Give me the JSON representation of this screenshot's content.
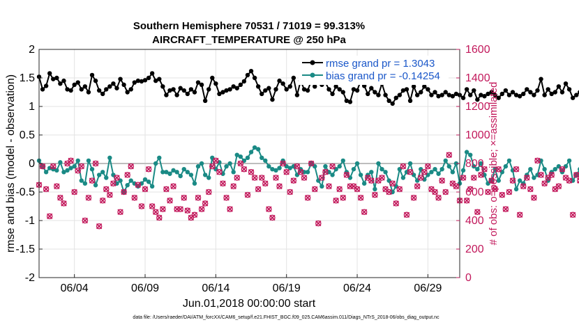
{
  "chart_data": {
    "type": "line",
    "title": "Southern Hemisphere 70531 / 71019 = 99.313%",
    "subtitle": "AIRCRAFT_TEMPERATURE @ 250 hPa",
    "xlabel": "Jun.01,2018 00:00:00 start",
    "ylabel": "rmse and bias (model - observation)",
    "ylabel_right": "# of obs: o=possible; ×=assimilated",
    "x_ticks": [
      "06/04",
      "06/09",
      "06/14",
      "06/19",
      "06/24",
      "06/29"
    ],
    "x_tick_days": [
      4,
      9,
      14,
      19,
      24,
      29
    ],
    "xlim": [
      1.5,
      31.25
    ],
    "ylim": [
      -2,
      2
    ],
    "y_ticks": [
      -2,
      -1.5,
      -1,
      -0.5,
      0,
      0.5,
      1,
      1.5,
      2
    ],
    "y_tick_labels": [
      "-2",
      "-1.5",
      "-1",
      "-0.5",
      "0",
      "0.5",
      "1",
      "1.5",
      "2"
    ],
    "ylim_right": [
      0,
      1600
    ],
    "y_ticks_right": [
      0,
      200,
      400,
      600,
      800,
      1000,
      1200,
      1400,
      1600
    ],
    "grid": true,
    "legend_position": "top-right",
    "zero_line": 0,
    "footnote": "data file: /Users/raeder/DAI/ATM_forcXX/CAM6_setup/f.e21.FHIST_BGC.f09_025.CAM6assim.011/Diags_NTrS_2018-06/obs_diag_output.nc",
    "series": [
      {
        "name": "rmse grand pr = 1.3043",
        "axis": "left",
        "color": "#000000",
        "marker": "dot",
        "x_start": 1.5,
        "x_step": 0.25,
        "values": [
          1.52,
          1.3,
          1.36,
          1.58,
          1.48,
          1.5,
          1.4,
          1.45,
          1.3,
          1.28,
          1.38,
          1.42,
          1.3,
          1.35,
          1.25,
          1.55,
          1.45,
          1.28,
          1.22,
          1.3,
          1.35,
          1.4,
          1.32,
          1.48,
          1.38,
          1.25,
          1.3,
          1.42,
          1.45,
          1.44,
          1.46,
          1.5,
          1.58,
          1.45,
          1.48,
          1.35,
          1.2,
          1.28,
          1.3,
          1.2,
          1.32,
          1.28,
          1.22,
          1.3,
          1.25,
          1.42,
          1.38,
          1.1,
          1.3,
          1.5,
          1.4,
          1.22,
          1.25,
          1.28,
          1.3,
          1.35,
          1.32,
          1.38,
          1.44,
          1.55,
          1.62,
          1.5,
          1.35,
          1.22,
          1.28,
          1.32,
          1.12,
          1.3,
          1.45,
          1.4,
          1.3,
          1.35,
          1.5,
          1.2,
          1.45,
          1.3,
          1.28,
          1.45,
          1.35,
          1.5,
          1.38,
          1.42,
          1.3,
          1.22,
          1.35,
          1.3,
          1.25,
          1.1,
          1.08,
          1.3,
          1.28,
          1.45,
          1.36,
          1.22,
          1.32,
          1.25,
          1.2,
          1.4,
          1.2,
          1.1,
          1.05,
          1.15,
          1.2,
          1.28,
          1.3,
          1.1,
          1.35,
          1.2,
          1.25,
          1.35,
          1.3,
          1.2,
          1.25,
          1.18,
          1.2,
          1.25,
          1.2,
          1.18,
          1.22,
          1.2,
          1.15,
          1.3,
          1.2,
          1.28,
          1.12,
          1.2,
          1.18,
          1.22,
          1.25,
          1.2,
          1.15,
          1.22,
          1.28,
          1.2,
          1.25,
          1.2,
          1.18,
          1.22,
          1.3,
          1.25,
          1.2,
          1.28,
          1.48,
          1.2,
          1.3,
          1.22,
          1.25,
          1.35,
          1.25,
          1.4,
          1.3,
          1.15,
          1.2,
          1.25,
          1.18,
          1.25,
          1.22,
          1.2,
          1.1,
          1.18,
          1.12,
          1.15
        ]
      },
      {
        "name": "bias grand pr = -0.14254",
        "axis": "left",
        "color": "#1a8a85",
        "marker": "dot",
        "x_start": 1.5,
        "x_step": 0.25,
        "values": [
          0.05,
          -0.05,
          -0.15,
          -0.08,
          -0.1,
          -0.12,
          0.02,
          -0.15,
          -0.12,
          -0.08,
          -0.05,
          0.05,
          -0.3,
          -0.35,
          0.05,
          -0.1,
          -0.38,
          -0.2,
          -0.15,
          -0.25,
          0.1,
          -0.2,
          -0.35,
          -0.3,
          -0.5,
          -0.38,
          -0.3,
          -0.35,
          -0.4,
          -0.35,
          -0.28,
          -0.32,
          -0.4,
          0.0,
          0.1,
          -0.15,
          -0.15,
          -0.18,
          -0.12,
          -0.15,
          -0.22,
          -0.1,
          -0.15,
          -0.2,
          -0.35,
          -0.05,
          0.0,
          -0.2,
          -0.25,
          0.1,
          -0.1,
          0.02,
          -0.18,
          -0.05,
          0.0,
          -0.15,
          0.15,
          0.12,
          0.05,
          0.1,
          0.2,
          0.28,
          0.25,
          0.1,
          0.05,
          -0.05,
          -0.1,
          -0.12,
          -0.08,
          0.05,
          -0.05,
          -0.08,
          -0.05,
          -0.2,
          -0.1,
          -0.15,
          -0.15,
          0.0,
          -0.05,
          -0.3,
          -0.4,
          -0.05,
          -0.15,
          -0.2,
          -0.1,
          -0.05,
          0.05,
          -0.15,
          -0.25,
          -0.1,
          0.0,
          -0.2,
          -0.35,
          -0.2,
          -0.15,
          -0.45,
          0.0,
          -0.1,
          -0.15,
          -0.3,
          -0.5,
          -0.4,
          -0.1,
          -0.25,
          -0.15,
          0.0,
          -0.2,
          -0.3,
          -0.1,
          -0.28,
          -0.2,
          -0.15,
          -0.1,
          -0.18,
          -0.1,
          0.05,
          -0.05,
          -0.15,
          0.0,
          -0.35,
          -0.12,
          0.2,
          0.15,
          -0.05,
          -0.1,
          0.0,
          -0.2,
          -0.35,
          -0.3,
          -0.1,
          -0.3,
          -0.15,
          -0.05,
          0.05,
          -0.12,
          -0.45,
          -0.3,
          -0.35,
          -0.2,
          -0.1,
          -0.25,
          -0.2,
          0.05,
          -0.1,
          -0.3,
          -0.15,
          -0.1,
          -0.05,
          -0.15,
          -0.05,
          0.05,
          -0.3,
          -0.2,
          -0.1,
          0.02,
          -0.25,
          -0.12,
          0.05,
          -0.1,
          -0.2,
          -0.35
        ]
      },
      {
        "name": "# of obs possible",
        "axis": "right",
        "color": "#c2185b",
        "marker": "circle-open",
        "x_start": 1.5,
        "x_step": 0.25,
        "values": [
          650,
          780,
          620,
          430,
          780,
          640,
          560,
          520,
          800,
          820,
          600,
          750,
          780,
          400,
          560,
          680,
          800,
          360,
          540,
          620,
          580,
          660,
          700,
          460,
          600,
          720,
          780,
          560,
          650,
          500,
          620,
          760,
          500,
          460,
          420,
          480,
          620,
          540,
          640,
          480,
          480,
          560,
          470,
          420,
          440,
          560,
          480,
          520,
          600,
          780,
          820,
          740,
          660,
          560,
          480,
          640,
          700,
          800,
          760,
          580,
          740,
          700,
          620,
          700,
          660,
          480,
          420,
          700,
          640,
          800,
          740,
          600,
          680,
          780,
          740,
          700,
          560,
          800,
          620,
          380,
          700,
          740,
          640,
          780,
          540,
          620,
          560,
          720,
          640,
          640,
          620,
          560,
          460,
          700,
          680,
          580,
          680,
          700,
          620,
          600,
          660,
          520,
          620,
          780,
          440,
          740,
          560,
          640,
          700,
          740,
          780,
          620,
          600,
          560,
          680,
          600,
          860,
          660,
          640,
          540,
          700,
          540,
          620,
          700,
          460,
          720,
          760,
          600,
          680,
          620,
          760,
          580,
          480,
          600,
          680,
          760,
          440,
          640,
          700,
          620,
          560,
          820,
          720,
          660,
          700,
          720,
          620,
          640,
          760,
          700,
          680,
          440,
          720,
          680,
          980,
          720,
          700,
          800,
          820,
          0
        ]
      },
      {
        "name": "# of obs assimilated",
        "axis": "right",
        "color": "#c2185b",
        "marker": "x",
        "x_start": 1.5,
        "x_step": 0.25,
        "values": [
          650,
          780,
          620,
          430,
          780,
          640,
          560,
          520,
          800,
          820,
          600,
          750,
          780,
          400,
          560,
          680,
          800,
          360,
          540,
          620,
          580,
          660,
          700,
          460,
          600,
          720,
          780,
          560,
          650,
          500,
          620,
          760,
          500,
          460,
          420,
          480,
          620,
          540,
          640,
          480,
          480,
          560,
          470,
          420,
          440,
          560,
          480,
          520,
          600,
          780,
          820,
          740,
          660,
          560,
          480,
          640,
          700,
          800,
          760,
          580,
          740,
          700,
          620,
          700,
          660,
          480,
          420,
          700,
          640,
          800,
          740,
          600,
          680,
          780,
          740,
          700,
          560,
          800,
          620,
          380,
          700,
          740,
          640,
          780,
          540,
          620,
          560,
          720,
          640,
          640,
          620,
          560,
          460,
          700,
          680,
          580,
          680,
          700,
          620,
          600,
          660,
          520,
          620,
          780,
          440,
          740,
          560,
          640,
          700,
          740,
          780,
          620,
          600,
          560,
          680,
          600,
          860,
          660,
          640,
          540,
          700,
          540,
          620,
          700,
          460,
          720,
          760,
          600,
          680,
          620,
          760,
          580,
          480,
          600,
          680,
          760,
          440,
          640,
          700,
          620,
          560,
          820,
          720,
          660,
          700,
          720,
          620,
          640,
          760,
          700,
          680,
          440,
          720,
          680,
          980,
          720,
          700,
          800,
          820,
          0
        ]
      }
    ]
  }
}
